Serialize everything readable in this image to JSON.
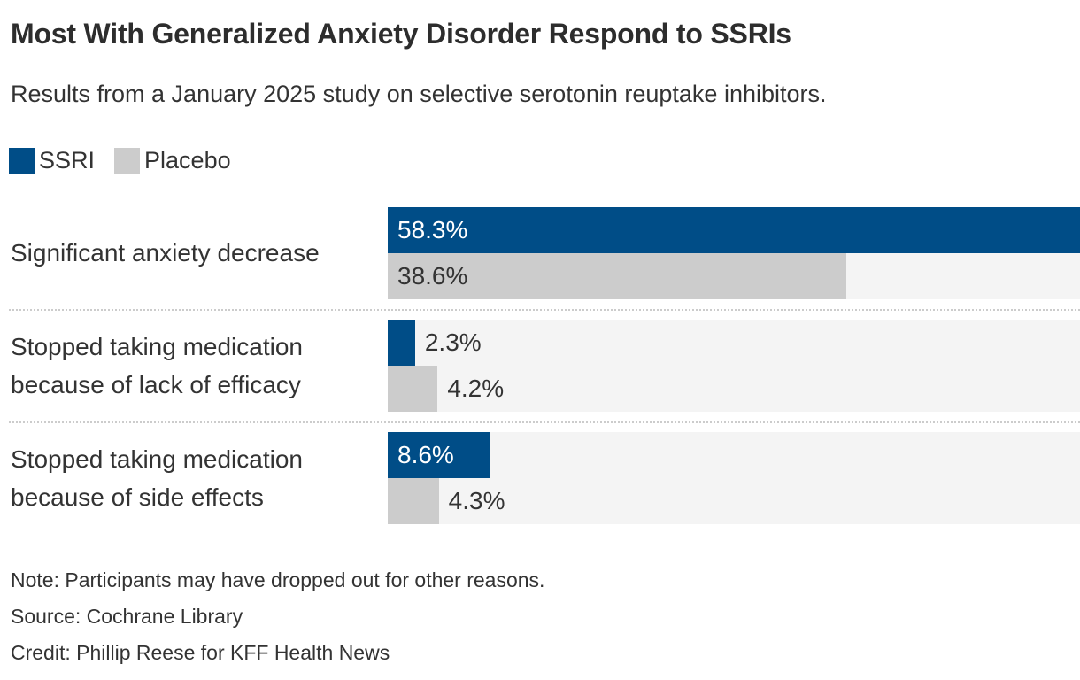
{
  "chart_data": {
    "type": "bar",
    "orientation": "horizontal",
    "title": "Most With Generalized Anxiety Disorder Respond to SSRIs",
    "subtitle": "Results from a January 2025 study on selective serotonin reuptake inhibitors.",
    "categories": [
      "Significant anxiety decrease",
      "Stopped taking medication because of lack of efficacy",
      "Stopped taking medication because of side effects"
    ],
    "series": [
      {
        "name": "SSRI",
        "color": "#004D87",
        "values": [
          58.3,
          2.3,
          8.6
        ]
      },
      {
        "name": "Placebo",
        "color": "#CCCCCC",
        "values": [
          38.6,
          4.2,
          4.3
        ]
      }
    ],
    "value_labels": [
      [
        "58.3%",
        "38.6%"
      ],
      [
        "2.3%",
        "4.2%"
      ],
      [
        "8.6%",
        "4.3%"
      ]
    ],
    "unit": "%",
    "max_value": 58.3,
    "xlim": [
      0,
      58.3
    ],
    "grid": false,
    "legend_position": "top-left",
    "track_color": "#F4F4F4",
    "value_label_color_on_blue": "#FFFFFF",
    "value_label_color_dark": "#333333"
  },
  "footer": {
    "note": "Note: Participants may have dropped out for other reasons.",
    "source": "Source: Cochrane Library",
    "credit": "Credit: Phillip Reese for KFF Health News"
  }
}
